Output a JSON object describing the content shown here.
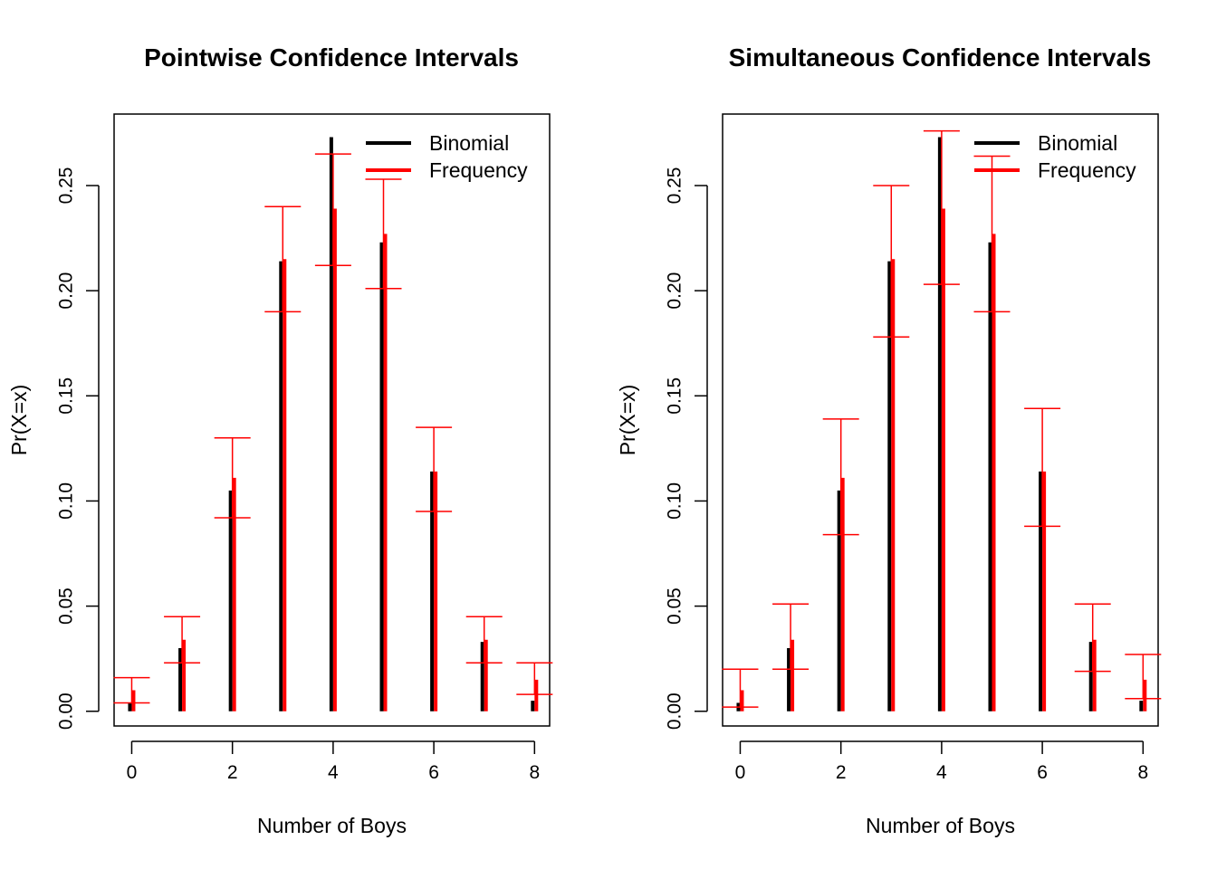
{
  "chart_data": [
    {
      "type": "bar",
      "title": "Pointwise Confidence Intervals",
      "xlabel": "Number of Boys",
      "ylabel": "Pr(X=x)",
      "x": [
        0,
        1,
        2,
        3,
        4,
        5,
        6,
        7,
        8
      ],
      "xlim": [
        -0.35,
        8.3
      ],
      "ylim": [
        -0.007,
        0.284
      ],
      "xticks": [
        0,
        2,
        4,
        6,
        8
      ],
      "yticks": [
        0.0,
        0.05,
        0.1,
        0.15,
        0.2,
        0.25
      ],
      "ytick_labels": [
        "0.00",
        "0.05",
        "0.10",
        "0.15",
        "0.20",
        "0.25"
      ],
      "xtick_labels": [
        "0",
        "2",
        "4",
        "6",
        "8"
      ],
      "legend": {
        "position": "top-right",
        "entries": [
          {
            "label": "Binomial",
            "color": "#000000"
          },
          {
            "label": "Frequency",
            "color": "#ff0000"
          }
        ]
      },
      "series": [
        {
          "name": "Binomial",
          "color": "#000000",
          "values": [
            0.004,
            0.03,
            0.105,
            0.214,
            0.273,
            0.223,
            0.114,
            0.033,
            0.005
          ]
        },
        {
          "name": "Frequency",
          "color": "#ff0000",
          "values": [
            0.01,
            0.034,
            0.111,
            0.215,
            0.239,
            0.227,
            0.114,
            0.034,
            0.015
          ],
          "ci_lower": [
            0.004,
            0.023,
            0.092,
            0.19,
            0.212,
            0.201,
            0.095,
            0.023,
            0.008
          ],
          "ci_upper": [
            0.016,
            0.045,
            0.13,
            0.24,
            0.265,
            0.253,
            0.135,
            0.045,
            0.023
          ]
        }
      ]
    },
    {
      "type": "bar",
      "title": "Simultaneous Confidence Intervals",
      "xlabel": "Number of Boys",
      "ylabel": "Pr(X=x)",
      "x": [
        0,
        1,
        2,
        3,
        4,
        5,
        6,
        7,
        8
      ],
      "xlim": [
        -0.35,
        8.3
      ],
      "ylim": [
        -0.007,
        0.284
      ],
      "xticks": [
        0,
        2,
        4,
        6,
        8
      ],
      "yticks": [
        0.0,
        0.05,
        0.1,
        0.15,
        0.2,
        0.25
      ],
      "ytick_labels": [
        "0.00",
        "0.05",
        "0.10",
        "0.15",
        "0.20",
        "0.25"
      ],
      "xtick_labels": [
        "0",
        "2",
        "4",
        "6",
        "8"
      ],
      "legend": {
        "position": "top-right",
        "entries": [
          {
            "label": "Binomial",
            "color": "#000000"
          },
          {
            "label": "Frequency",
            "color": "#ff0000"
          }
        ]
      },
      "series": [
        {
          "name": "Binomial",
          "color": "#000000",
          "values": [
            0.004,
            0.03,
            0.105,
            0.214,
            0.273,
            0.223,
            0.114,
            0.033,
            0.005
          ]
        },
        {
          "name": "Frequency",
          "color": "#ff0000",
          "values": [
            0.01,
            0.034,
            0.111,
            0.215,
            0.239,
            0.227,
            0.114,
            0.034,
            0.015
          ],
          "ci_lower": [
            0.002,
            0.02,
            0.084,
            0.178,
            0.203,
            0.19,
            0.088,
            0.019,
            0.006
          ],
          "ci_upper": [
            0.02,
            0.051,
            0.139,
            0.25,
            0.276,
            0.264,
            0.144,
            0.051,
            0.027
          ]
        }
      ]
    }
  ]
}
